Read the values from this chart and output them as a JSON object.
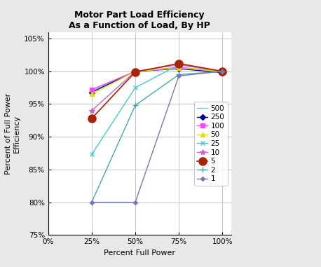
{
  "title": "Motor Part Load Efficiency\nAs a Function of Load, By HP",
  "xlabel": "Percent Full Power",
  "ylabel": "Percent of Full Power\nEfficiency",
  "xlim": [
    0.0,
    1.05
  ],
  "ylim": [
    0.75,
    1.06
  ],
  "xticks": [
    0.0,
    0.25,
    0.5,
    0.75,
    1.0
  ],
  "yticks": [
    0.75,
    0.8,
    0.85,
    0.9,
    0.95,
    1.0,
    1.05
  ],
  "series": [
    {
      "label": "500",
      "color": "#66CCCC",
      "marker": null,
      "linestyle": "-",
      "linewidth": 1.0,
      "x": [
        0.25,
        0.5,
        0.75,
        1.0
      ],
      "y": [
        0.97,
        1.0,
        1.005,
        1.0
      ]
    },
    {
      "label": "250",
      "color": "#000099",
      "marker": "D",
      "markersize": 4,
      "linestyle": "-",
      "linewidth": 1.0,
      "x": [
        0.25,
        0.5,
        0.75,
        1.0
      ],
      "y": [
        0.968,
        1.0,
        1.004,
        0.998
      ]
    },
    {
      "label": "100",
      "color": "#FF44FF",
      "marker": "s",
      "markersize": 4,
      "linestyle": "-",
      "linewidth": 1.0,
      "x": [
        0.25,
        0.5,
        0.75,
        1.0
      ],
      "y": [
        0.972,
        1.0,
        1.006,
        1.0
      ]
    },
    {
      "label": "50",
      "color": "#DDDD00",
      "marker": "^",
      "markersize": 4,
      "linestyle": "-",
      "linewidth": 1.0,
      "x": [
        0.25,
        0.5,
        0.75,
        1.0
      ],
      "y": [
        0.965,
        1.0,
        1.005,
        1.0
      ]
    },
    {
      "label": "25",
      "color": "#44CCCC",
      "marker": "x",
      "markersize": 5,
      "linestyle": "-",
      "linewidth": 1.0,
      "x": [
        0.25,
        0.5,
        0.75,
        1.0
      ],
      "y": [
        0.873,
        0.975,
        1.01,
        1.0
      ]
    },
    {
      "label": "10",
      "color": "#CC66CC",
      "marker": "*",
      "markersize": 6,
      "linestyle": "-",
      "linewidth": 1.0,
      "x": [
        0.25,
        0.5,
        0.75,
        1.0
      ],
      "y": [
        0.94,
        1.0,
        1.01,
        1.0
      ]
    },
    {
      "label": "5",
      "color": "#AA2200",
      "marker": "o",
      "markersize": 8,
      "linestyle": "-",
      "linewidth": 1.2,
      "x": [
        0.25,
        0.5,
        0.75,
        1.0
      ],
      "y": [
        0.928,
        0.999,
        1.012,
        1.0
      ]
    },
    {
      "label": "2",
      "color": "#44AAAA",
      "marker": "+",
      "markersize": 6,
      "linestyle": "-",
      "linewidth": 1.0,
      "x": [
        0.25,
        0.5,
        0.75,
        1.0
      ],
      "y": [
        0.8,
        0.948,
        0.995,
        1.0
      ]
    },
    {
      "label": "1",
      "color": "#7777BB",
      "marker": "D",
      "markersize": 3,
      "linestyle": "-",
      "linewidth": 1.0,
      "x": [
        0.25,
        0.5,
        0.75,
        1.0
      ],
      "y": [
        0.8,
        0.8,
        0.993,
        1.0
      ]
    }
  ],
  "background_color": "#E8E8E8",
  "plot_bg_color": "#FFFFFF",
  "grid_color": "#BBBBBB",
  "title_fontsize": 9,
  "label_fontsize": 8,
  "tick_fontsize": 7.5,
  "legend_fontsize": 7.5
}
